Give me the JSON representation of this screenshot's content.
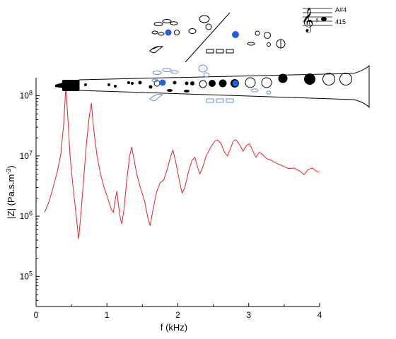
{
  "chart_data": {
    "type": "line",
    "xlabel": "f (kHz)",
    "ylabel_base": "|Z| (Pa.s.m",
    "ylabel_exp": "-3",
    "ylabel_close": ")",
    "xlim": [
      0,
      4
    ],
    "ylim_log10": [
      4.5,
      8.3
    ],
    "y_scale": "log",
    "grid": false,
    "x_ticks": [
      {
        "v": 0,
        "label": "0"
      },
      {
        "v": 1,
        "label": "1"
      },
      {
        "v": 2,
        "label": "2"
      },
      {
        "v": 3,
        "label": "3"
      },
      {
        "v": 4,
        "label": "4"
      }
    ],
    "y_ticks": [
      {
        "exp": 5,
        "base": "10",
        "sup": "5"
      },
      {
        "exp": 6,
        "base": "10",
        "sup": "6"
      },
      {
        "exp": 7,
        "base": "10",
        "sup": "7"
      },
      {
        "exp": 8,
        "base": "10",
        "sup": "8"
      }
    ],
    "series": [
      {
        "color": "#e8202a",
        "points": [
          [
            0.12,
            1150000.0
          ],
          [
            0.18,
            1700000.0
          ],
          [
            0.24,
            3000000.0
          ],
          [
            0.3,
            5500000.0
          ],
          [
            0.35,
            11000000.0
          ],
          [
            0.39,
            35000000.0
          ],
          [
            0.42,
            140000000.0
          ],
          [
            0.45,
            40000000.0
          ],
          [
            0.48,
            10000000.0
          ],
          [
            0.52,
            3200000.0
          ],
          [
            0.56,
            1200000.0
          ],
          [
            0.6,
            420000.0
          ],
          [
            0.63,
            1000000.0
          ],
          [
            0.67,
            4000000.0
          ],
          [
            0.71,
            16000000.0
          ],
          [
            0.75,
            45000000.0
          ],
          [
            0.78,
            75000000.0
          ],
          [
            0.81,
            30000000.0
          ],
          [
            0.86,
            10000000.0
          ],
          [
            0.91,
            5000000.0
          ],
          [
            0.96,
            3000000.0
          ],
          [
            1.01,
            2000000.0
          ],
          [
            1.06,
            1300000.0
          ],
          [
            1.09,
            1150000.0
          ],
          [
            1.12,
            2000000.0
          ],
          [
            1.14,
            2600000.0
          ],
          [
            1.16,
            1600000.0
          ],
          [
            1.19,
            900000.0
          ],
          [
            1.21,
            750000.0
          ],
          [
            1.24,
            1300000.0
          ],
          [
            1.28,
            4000000.0
          ],
          [
            1.32,
            10000000.0
          ],
          [
            1.35,
            14000000.0
          ],
          [
            1.38,
            9000000.0
          ],
          [
            1.42,
            5000000.0
          ],
          [
            1.47,
            3000000.0
          ],
          [
            1.53,
            1800000.0
          ],
          [
            1.58,
            900000.0
          ],
          [
            1.61,
            700000.0
          ],
          [
            1.65,
            1300000.0
          ],
          [
            1.7,
            2500000.0
          ],
          [
            1.75,
            3600000.0
          ],
          [
            1.8,
            4000000.0
          ],
          [
            1.85,
            6000000.0
          ],
          [
            1.9,
            10000000.0
          ],
          [
            1.93,
            12500000.0
          ],
          [
            1.97,
            8000000.0
          ],
          [
            2.02,
            4000000.0
          ],
          [
            2.06,
            2400000.0
          ],
          [
            2.1,
            3000000.0
          ],
          [
            2.15,
            5500000.0
          ],
          [
            2.2,
            8500000.0
          ],
          [
            2.24,
            9500000.0
          ],
          [
            2.27,
            7000000.0
          ],
          [
            2.31,
            5000000.0
          ],
          [
            2.35,
            6500000.0
          ],
          [
            2.4,
            10000000.0
          ],
          [
            2.45,
            13000000.0
          ],
          [
            2.48,
            15000000.0
          ],
          [
            2.52,
            17500000.0
          ],
          [
            2.56,
            18500000.0
          ],
          [
            2.61,
            16000000.0
          ],
          [
            2.65,
            12000000.0
          ],
          [
            2.7,
            10000000.0
          ],
          [
            2.74,
            13000000.0
          ],
          [
            2.78,
            17500000.0
          ],
          [
            2.82,
            18500000.0
          ],
          [
            2.87,
            15500000.0
          ],
          [
            2.92,
            12000000.0
          ],
          [
            2.97,
            15000000.0
          ],
          [
            3.01,
            16000000.0
          ],
          [
            3.06,
            12000000.0
          ],
          [
            3.1,
            9500000.0
          ],
          [
            3.15,
            11500000.0
          ],
          [
            3.2,
            10500000.0
          ],
          [
            3.25,
            9000000.0
          ],
          [
            3.32,
            8500000.0
          ],
          [
            3.4,
            7500000.0
          ],
          [
            3.48,
            6800000.0
          ],
          [
            3.56,
            6200000.0
          ],
          [
            3.64,
            6300000.0
          ],
          [
            3.72,
            5600000.0
          ],
          [
            3.78,
            4900000.0
          ],
          [
            3.84,
            6000000.0
          ],
          [
            3.9,
            6300000.0
          ],
          [
            3.95,
            5600000.0
          ],
          [
            4.0,
            5400000.0
          ]
        ]
      }
    ]
  },
  "notation": {
    "note_name": "A#4",
    "frequency_label": "415"
  }
}
